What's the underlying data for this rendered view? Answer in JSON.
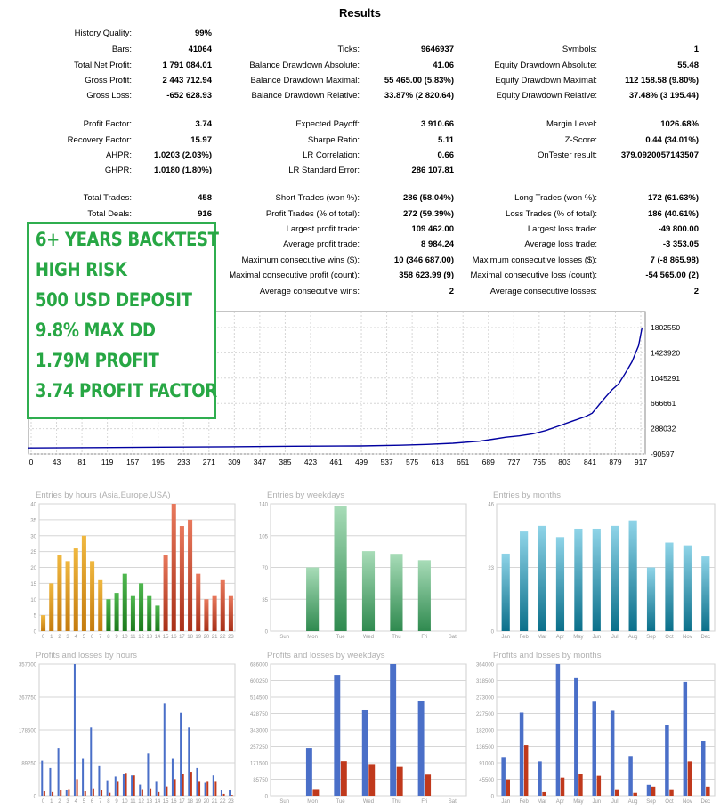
{
  "title": "Results",
  "stats": {
    "col1": [
      {
        "label": "History Quality:",
        "value": "99%"
      },
      {
        "label": "Bars:",
        "value": "41064"
      },
      {
        "label": "Total Net Profit:",
        "value": "1 791 084.01"
      },
      {
        "label": "Gross Profit:",
        "value": "2 443 712.94"
      },
      {
        "label": "Gross Loss:",
        "value": "-652 628.93"
      },
      {
        "label": "Profit Factor:",
        "value": "3.74"
      },
      {
        "label": "Recovery Factor:",
        "value": "15.97"
      },
      {
        "label": "AHPR:",
        "value": "1.0203 (2.03%)"
      },
      {
        "label": "GHPR:",
        "value": "1.0180 (1.80%)"
      },
      {
        "label": "Total Trades:",
        "value": "458"
      },
      {
        "label": "Total Deals:",
        "value": "916"
      }
    ],
    "col2": [
      {
        "label": "Ticks:",
        "value": "9646937"
      },
      {
        "label": "Balance Drawdown Absolute:",
        "value": "41.06"
      },
      {
        "label": "Balance Drawdown Maximal:",
        "value": "55 465.00 (5.83%)"
      },
      {
        "label": "Balance Drawdown Relative:",
        "value": "33.87% (2 820.64)"
      },
      {
        "label": "Expected Payoff:",
        "value": "3 910.66"
      },
      {
        "label": "Sharpe Ratio:",
        "value": "5.11"
      },
      {
        "label": "LR Correlation:",
        "value": "0.66"
      },
      {
        "label": "LR Standard Error:",
        "value": "286 107.81"
      },
      {
        "label": "Short Trades (won %):",
        "value": "286 (58.04%)"
      },
      {
        "label": "Profit Trades (% of total):",
        "value": "272 (59.39%)"
      },
      {
        "label": "Largest profit trade:",
        "value": "109 462.00"
      },
      {
        "label": "Average profit trade:",
        "value": "8 984.24"
      },
      {
        "label": "Maximum consecutive wins ($):",
        "value": "10 (346 687.00)"
      },
      {
        "label": "Maximal consecutive profit (count):",
        "value": "358 623.99 (9)"
      },
      {
        "label": "Average consecutive wins:",
        "value": "2"
      }
    ],
    "col3": [
      {
        "label": "Symbols:",
        "value": "1"
      },
      {
        "label": "Equity Drawdown Absolute:",
        "value": "55.48"
      },
      {
        "label": "Equity Drawdown Maximal:",
        "value": "112 158.58 (9.80%)"
      },
      {
        "label": "Equity Drawdown Relative:",
        "value": "37.48% (3 195.44)"
      },
      {
        "label": "Margin Level:",
        "value": "1026.68%"
      },
      {
        "label": "Z-Score:",
        "value": "0.44 (34.01%)"
      },
      {
        "label": "OnTester result:",
        "value": "379.0920057143507"
      },
      {
        "label": "Long Trades (won %):",
        "value": "172 (61.63%)"
      },
      {
        "label": "Loss Trades (% of total):",
        "value": "186 (40.61%)"
      },
      {
        "label": "Largest loss trade:",
        "value": "-49 800.00"
      },
      {
        "label": "Average loss trade:",
        "value": "-3 353.05"
      },
      {
        "label": "Maximum consecutive losses ($):",
        "value": "7 (-8 865.98)"
      },
      {
        "label": "Maximal consecutive loss (count):",
        "value": "-54 565.00 (2)"
      },
      {
        "label": "Average consecutive losses:",
        "value": "2"
      }
    ]
  },
  "overlay": {
    "lines": [
      "6+ YEARS BACKTEST",
      "HIGH RISK",
      "500 USD DEPOSIT",
      "9.8% MAX DD",
      "1.79M PROFIT",
      "3.74 PROFIT FACTOR"
    ],
    "color": "#27a744"
  },
  "chart_data": [
    {
      "type": "line",
      "title": "",
      "x_ticks": [
        "0",
        "43",
        "81",
        "119",
        "157",
        "195",
        "233",
        "271",
        "309",
        "347",
        "385",
        "423",
        "461",
        "499",
        "537",
        "575",
        "613",
        "651",
        "689",
        "727",
        "765",
        "803",
        "841",
        "879",
        "917"
      ],
      "y_ticks": [
        "1802550",
        "1423920",
        "1045291",
        "666661",
        "288032",
        "-90597"
      ],
      "ylim": [
        -90597,
        1802550
      ],
      "xlim": [
        0,
        930
      ],
      "series": [
        {
          "color": "#0000a0",
          "x": [
            0,
            100,
            200,
            300,
            400,
            500,
            560,
            600,
            640,
            680,
            700,
            720,
            740,
            760,
            780,
            800,
            820,
            840,
            850,
            860,
            870,
            880,
            890,
            900,
            910,
            920,
            925
          ],
          "values": [
            500,
            6000,
            12000,
            18000,
            25000,
            30000,
            40000,
            52000,
            70000,
            100000,
            130000,
            160000,
            180000,
            210000,
            260000,
            330000,
            400000,
            470000,
            520000,
            640000,
            760000,
            870000,
            960000,
            1120000,
            1290000,
            1530000,
            1791584
          ]
        }
      ]
    },
    {
      "type": "bar",
      "title": "Entries by hours (Asia,Europe,USA)",
      "categories": [
        "0",
        "1",
        "2",
        "3",
        "4",
        "5",
        "6",
        "7",
        "8",
        "9",
        "10",
        "11",
        "12",
        "13",
        "14",
        "15",
        "16",
        "17",
        "18",
        "19",
        "20",
        "21",
        "22",
        "23"
      ],
      "values": [
        5,
        15,
        24,
        22,
        26,
        30,
        22,
        16,
        10,
        12,
        18,
        11,
        15,
        11,
        8,
        24,
        40,
        33,
        35,
        18,
        10,
        11,
        16,
        11
      ],
      "ylim": [
        0,
        40
      ],
      "y_ticks": [
        "40",
        "35",
        "30",
        "25",
        "20",
        "15",
        "10",
        "5",
        "0"
      ]
    },
    {
      "type": "bar",
      "title": "Entries by weekdays",
      "categories": [
        "Sun",
        "Mon",
        "Tue",
        "Wed",
        "Thu",
        "Fri",
        "Sat"
      ],
      "values": [
        0,
        70,
        138,
        88,
        85,
        78,
        0
      ],
      "ylim": [
        0,
        140
      ],
      "y_ticks": [
        "140",
        "105",
        "70",
        "35",
        "0"
      ]
    },
    {
      "type": "bar",
      "title": "Entries by months",
      "categories": [
        "Jan",
        "Feb",
        "Mar",
        "Apr",
        "May",
        "Jun",
        "Jul",
        "Aug",
        "Sep",
        "Oct",
        "Nov",
        "Dec"
      ],
      "values": [
        28,
        36,
        38,
        34,
        37,
        37,
        38,
        40,
        23,
        32,
        31,
        27
      ],
      "ylim": [
        0,
        46
      ],
      "y_ticks": [
        "46",
        "23",
        "0"
      ]
    },
    {
      "type": "bar",
      "title": "Profits and losses by hours",
      "categories": [
        "0",
        "1",
        "2",
        "3",
        "4",
        "5",
        "6",
        "7",
        "8",
        "9",
        "10",
        "11",
        "12",
        "13",
        "14",
        "15",
        "16",
        "17",
        "18",
        "19",
        "20",
        "21",
        "22",
        "23"
      ],
      "series": [
        {
          "name": "profit",
          "values": [
            95000,
            75000,
            130000,
            15000,
            357000,
            100000,
            185000,
            80000,
            42000,
            52000,
            60000,
            55000,
            30000,
            115000,
            40000,
            250000,
            100000,
            225000,
            185000,
            75000,
            35000,
            55000,
            15000,
            15000
          ]
        },
        {
          "name": "loss",
          "values": [
            12000,
            10000,
            15000,
            18000,
            45000,
            12000,
            20000,
            15000,
            8000,
            40000,
            62000,
            55000,
            18000,
            20000,
            10000,
            25000,
            45000,
            60000,
            65000,
            40000,
            40000,
            40000,
            5000,
            2000
          ]
        }
      ],
      "ylim": [
        0,
        357000
      ],
      "y_ticks": [
        "357000",
        "267750",
        "178500",
        "89250",
        "0"
      ]
    },
    {
      "type": "bar",
      "title": "Profits and losses by weekdays",
      "categories": [
        "Sun",
        "Mon",
        "Tue",
        "Wed",
        "Thu",
        "Fri",
        "Sat"
      ],
      "series": [
        {
          "name": "profit",
          "values": [
            0,
            250000,
            630000,
            445000,
            686000,
            495000,
            0
          ]
        },
        {
          "name": "loss",
          "values": [
            0,
            35000,
            180000,
            165000,
            150000,
            110000,
            0
          ]
        }
      ],
      "ylim": [
        0,
        686000
      ],
      "y_ticks": [
        "686000",
        "600250",
        "514500",
        "428750",
        "343000",
        "257250",
        "171500",
        "85750",
        "0"
      ]
    },
    {
      "type": "bar",
      "title": "Profits and losses by months",
      "categories": [
        "Jan",
        "Feb",
        "Mar",
        "Apr",
        "May",
        "Jun",
        "Jul",
        "Aug",
        "Sep",
        "Oct",
        "Nov",
        "Dec"
      ],
      "series": [
        {
          "name": "profit",
          "values": [
            105000,
            230000,
            95000,
            364000,
            325000,
            260000,
            235000,
            110000,
            30000,
            195000,
            315000,
            150000
          ]
        },
        {
          "name": "loss",
          "values": [
            45000,
            140000,
            10000,
            50000,
            60000,
            55000,
            18000,
            8000,
            25000,
            18000,
            95000,
            25000
          ]
        }
      ],
      "ylim": [
        0,
        364000
      ],
      "y_ticks": [
        "364000",
        "318500",
        "273000",
        "227500",
        "182000",
        "136500",
        "91000",
        "45500",
        "0"
      ]
    }
  ],
  "colors": {
    "profit": "#4a6fc8",
    "loss": "#c0391c",
    "balance": "#0000a0",
    "grid": "#d6d6d6"
  }
}
